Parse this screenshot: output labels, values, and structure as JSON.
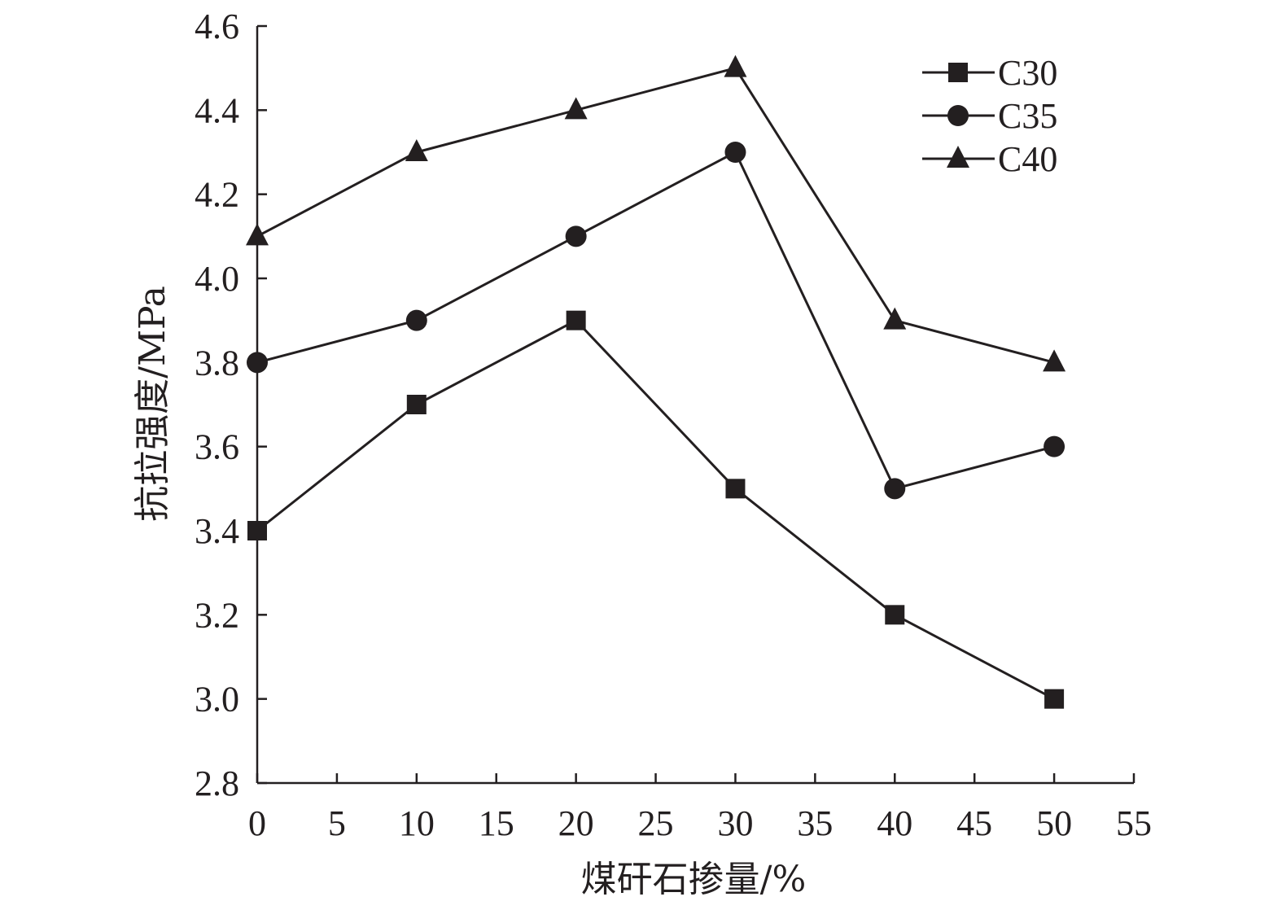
{
  "chart_data": {
    "type": "line",
    "title": "",
    "xlabel": "煤矸石掺量/%",
    "ylabel": "抗拉强度/MPa",
    "xlim": [
      0,
      55
    ],
    "ylim": [
      2.8,
      4.6
    ],
    "xticks": [
      0,
      5,
      10,
      15,
      20,
      25,
      30,
      35,
      40,
      45,
      50,
      55
    ],
    "yticks": [
      "2.8",
      "3.0",
      "3.2",
      "3.4",
      "3.6",
      "3.8",
      "4.0",
      "4.2",
      "4.4",
      "4.6"
    ],
    "grid": false,
    "legend_position": "top-right",
    "x": [
      0,
      10,
      20,
      30,
      40,
      50
    ],
    "series": [
      {
        "name": "C30",
        "marker": "square",
        "values": [
          3.4,
          3.7,
          3.9,
          3.5,
          3.2,
          3.0
        ]
      },
      {
        "name": "C35",
        "marker": "circle",
        "values": [
          3.8,
          3.9,
          4.1,
          4.3,
          3.5,
          3.6
        ]
      },
      {
        "name": "C40",
        "marker": "triangle",
        "values": [
          4.1,
          4.3,
          4.4,
          4.5,
          3.9,
          3.8
        ]
      }
    ],
    "line_color": "#231f20"
  }
}
